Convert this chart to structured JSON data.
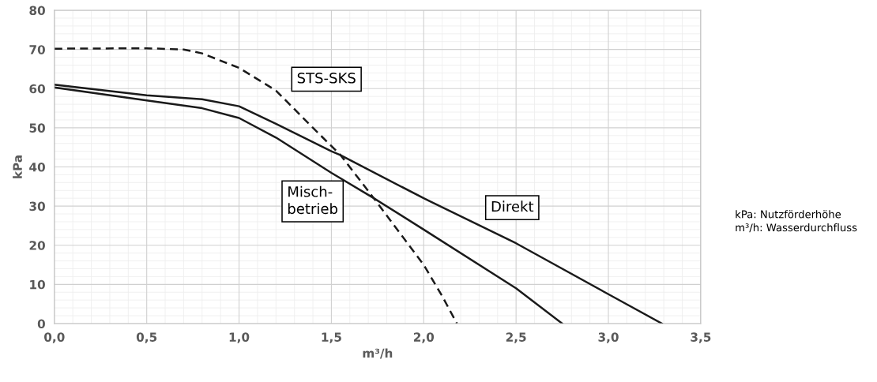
{
  "chart_data": {
    "type": "line",
    "xlabel": "m³/h",
    "ylabel": "kPa",
    "xlim": [
      0,
      3.5
    ],
    "ylim": [
      0,
      80
    ],
    "xticks": [
      {
        "value": 0,
        "label": "0,0"
      },
      {
        "value": 0.5,
        "label": "0,5"
      },
      {
        "value": 1.0,
        "label": "1,0"
      },
      {
        "value": 1.5,
        "label": "1,5"
      },
      {
        "value": 2.0,
        "label": "2,0"
      },
      {
        "value": 2.5,
        "label": "2,5"
      },
      {
        "value": 3.0,
        "label": "3,0"
      },
      {
        "value": 3.5,
        "label": "3,5"
      }
    ],
    "yticks": [
      0,
      10,
      20,
      30,
      40,
      50,
      60,
      70,
      80
    ],
    "grid": true,
    "legend": false,
    "marker": "none",
    "series": [
      {
        "name": "STS-SKS",
        "color": "#1a1a1a",
        "line_style": "dashed",
        "x": [
          0,
          0.5,
          0.7,
          0.8,
          1.0,
          1.2,
          1.4,
          1.55,
          1.73,
          2.0,
          2.1,
          2.18
        ],
        "values": [
          70.2,
          70.3,
          70,
          69,
          65.3,
          59.5,
          50,
          43,
          32,
          15,
          7,
          0
        ]
      },
      {
        "name": "Direkt",
        "color": "#1a1a1a",
        "line_style": "solid",
        "x": [
          0,
          0.5,
          0.8,
          1.0,
          1.2,
          1.5,
          1.55,
          2.0,
          2.5,
          3.0,
          3.29
        ],
        "values": [
          61,
          58.3,
          57.3,
          55.5,
          51,
          44,
          43,
          32,
          20.5,
          7.5,
          0
        ]
      },
      {
        "name": "Misch-\nbetrieb",
        "color": "#1a1a1a",
        "line_style": "solid",
        "x": [
          0,
          0.5,
          0.8,
          1.0,
          1.2,
          1.5,
          1.73,
          2.0,
          2.5,
          2.75
        ],
        "values": [
          60.3,
          57,
          55,
          52.5,
          47.5,
          38.5,
          32,
          24,
          9,
          0
        ]
      }
    ],
    "annotations": [
      "kPa: Nutzförderhöhe",
      "m³/h: Wasserdurchfluss"
    ]
  }
}
